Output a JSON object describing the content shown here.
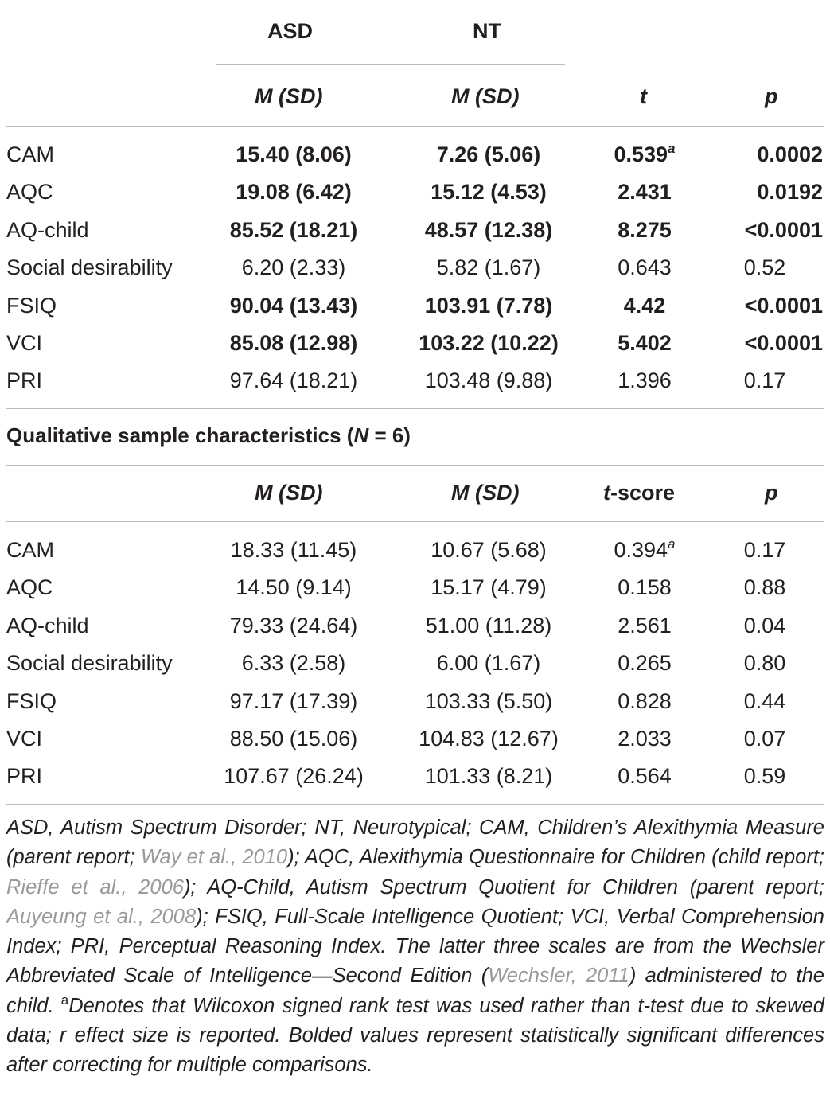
{
  "header": {
    "group_asd": "ASD",
    "group_nt": "NT",
    "m_sd_asd": "M (SD)",
    "m_sd_nt": "M (SD)",
    "t": "t",
    "p": "p"
  },
  "table1": {
    "rows": [
      {
        "label": "CAM",
        "asd": "15.40 (8.06)",
        "nt": "7.26 (5.06)",
        "t": "0.539",
        "t_sup": "a",
        "p": "0.0002",
        "bold": true
      },
      {
        "label": "AQC",
        "asd": "19.08 (6.42)",
        "nt": "15.12 (4.53)",
        "t": "2.431",
        "t_sup": "",
        "p": "0.0192",
        "bold": true
      },
      {
        "label": "AQ-child",
        "asd": "85.52 (18.21)",
        "nt": "48.57 (12.38)",
        "t": "8.275",
        "t_sup": "",
        "p": "<0.0001",
        "bold": true
      },
      {
        "label": "Social desirability",
        "asd": "6.20 (2.33)",
        "nt": "5.82 (1.67)",
        "t": "0.643",
        "t_sup": "",
        "p": "0.52",
        "bold": false
      },
      {
        "label": "FSIQ",
        "asd": "90.04 (13.43)",
        "nt": "103.91 (7.78)",
        "t": "4.42",
        "t_sup": "",
        "p": "<0.0001",
        "bold": true
      },
      {
        "label": "VCI",
        "asd": "85.08 (12.98)",
        "nt": "103.22 (10.22)",
        "t": "5.402",
        "t_sup": "",
        "p": "<0.0001",
        "bold": true
      },
      {
        "label": "PRI",
        "asd": "97.64 (18.21)",
        "nt": "103.48 (9.88)",
        "t": "1.396",
        "t_sup": "",
        "p": "0.17",
        "bold": false
      }
    ]
  },
  "section2": {
    "title_prefix": "Qualitative sample characteristics (",
    "title_n": "N",
    "title_suffix": " = 6)",
    "m_sd_asd": "M (SD)",
    "m_sd_nt": "M (SD)",
    "t_prefix": "t",
    "t_suffix": "-score",
    "p": "p"
  },
  "table2": {
    "rows": [
      {
        "label": "CAM",
        "asd": "18.33 (11.45)",
        "nt": "10.67 (5.68)",
        "t": "0.394",
        "t_sup": "a",
        "p": "0.17"
      },
      {
        "label": "AQC",
        "asd": "14.50 (9.14)",
        "nt": "15.17 (4.79)",
        "t": "0.158",
        "t_sup": "",
        "p": "0.88"
      },
      {
        "label": "AQ-child",
        "asd": "79.33 (24.64)",
        "nt": "51.00 (11.28)",
        "t": "2.561",
        "t_sup": "",
        "p": "0.04"
      },
      {
        "label": "Social desirability",
        "asd": "6.33 (2.58)",
        "nt": "6.00 (1.67)",
        "t": "0.265",
        "t_sup": "",
        "p": "0.80"
      },
      {
        "label": "FSIQ",
        "asd": "97.17 (17.39)",
        "nt": "103.33 (5.50)",
        "t": "0.828",
        "t_sup": "",
        "p": "0.44"
      },
      {
        "label": "VCI",
        "asd": "88.50 (15.06)",
        "nt": "104.83 (12.67)",
        "t": "2.033",
        "t_sup": "",
        "p": "0.07"
      },
      {
        "label": "PRI",
        "asd": "107.67 (26.24)",
        "nt": "101.33 (8.21)",
        "t": "0.564",
        "t_sup": "",
        "p": "0.59"
      }
    ]
  },
  "footnote": {
    "part1": "ASD, Autism Spectrum Disorder; NT, Neurotypical; CAM, Children’s Alexithymia Measure (parent report; ",
    "ref1": "Way et al., 2010",
    "part2": "); AQC, Alexithymia Questionnaire for Children (child report; ",
    "ref2": "Rieffe et al., 2006",
    "part3": "); AQ-Child, Autism Spectrum Quotient for Children (parent report; ",
    "ref3": "Auyeung et al., 2008",
    "part4": "); FSIQ, Full-Scale Intelligence Quotient; VCI, Verbal Comprehension Index; PRI, Perceptual Reasoning Index. The latter three scales are from the Wechsler Abbreviated Scale of Intelligence—Second Edition (",
    "ref4": "Wechsler, 2011",
    "part5": ") administered to the child. ",
    "sup": "a",
    "part6": "Denotes that Wilcoxon signed rank test was used rather than t-test due to skewed data; r effect size is reported. Bolded values represent statistically significant differences after correcting for multiple comparisons."
  }
}
